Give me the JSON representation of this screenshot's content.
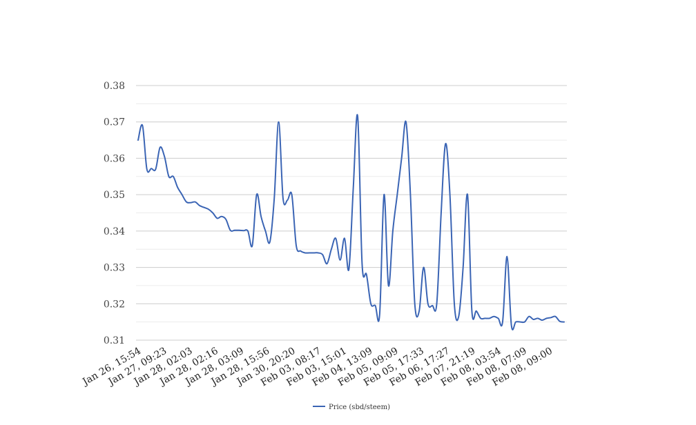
{
  "chart_data": {
    "type": "line",
    "title": "",
    "xlabel": "",
    "ylabel": "",
    "ylim": [
      0.31,
      0.38
    ],
    "yticks": [
      "0.31",
      "0.32",
      "0.33",
      "0.34",
      "0.35",
      "0.36",
      "0.37",
      "0.38"
    ],
    "grid": true,
    "legend_position": "bottom",
    "x_tick_labels": [
      "Jan 26, 15:54",
      "Jan 27, 09:23",
      "Jan 28, 02:03",
      "Jan 28, 02:16",
      "Jan 28, 03:09",
      "Jan 28, 15:56",
      "Jan 30, 20:20",
      "Feb 03, 08:17",
      "Feb 03, 15:01",
      "Feb 04, 13:09",
      "Feb 05, 09:09",
      "Feb 05, 17:33",
      "Feb 06, 17:27",
      "Feb 07, 21:19",
      "Feb 08, 03:54",
      "Feb 08, 07:09",
      "Feb 08, 09:00"
    ],
    "series": [
      {
        "name": "Price (sbd/steem)",
        "color": "#3a64b4",
        "values": [
          0.365,
          0.369,
          0.357,
          0.3572,
          0.357,
          0.363,
          0.3605,
          0.355,
          0.355,
          0.352,
          0.35,
          0.348,
          0.3478,
          0.348,
          0.347,
          0.3465,
          0.346,
          0.345,
          0.3435,
          0.344,
          0.3432,
          0.3402,
          0.3402,
          0.3402,
          0.3401,
          0.34,
          0.336,
          0.35,
          0.344,
          0.34,
          0.337,
          0.349,
          0.37,
          0.349,
          0.3485,
          0.35,
          0.336,
          0.3345,
          0.334,
          0.334,
          0.334,
          0.334,
          0.3335,
          0.331,
          0.335,
          0.338,
          0.332,
          0.338,
          0.3295,
          0.352,
          0.3715,
          0.331,
          0.328,
          0.32,
          0.3195,
          0.317,
          0.35,
          0.325,
          0.34,
          0.35,
          0.36,
          0.37,
          0.35,
          0.32,
          0.318,
          0.33,
          0.32,
          0.3195,
          0.32,
          0.345,
          0.364,
          0.35,
          0.32,
          0.3165,
          0.33,
          0.35,
          0.318,
          0.318,
          0.316,
          0.316,
          0.316,
          0.3165,
          0.316,
          0.315,
          0.333,
          0.314,
          0.315,
          0.315,
          0.315,
          0.3165,
          0.3157,
          0.316,
          0.3155,
          0.316,
          0.3162,
          0.3165,
          0.3152,
          0.315
        ]
      }
    ]
  }
}
